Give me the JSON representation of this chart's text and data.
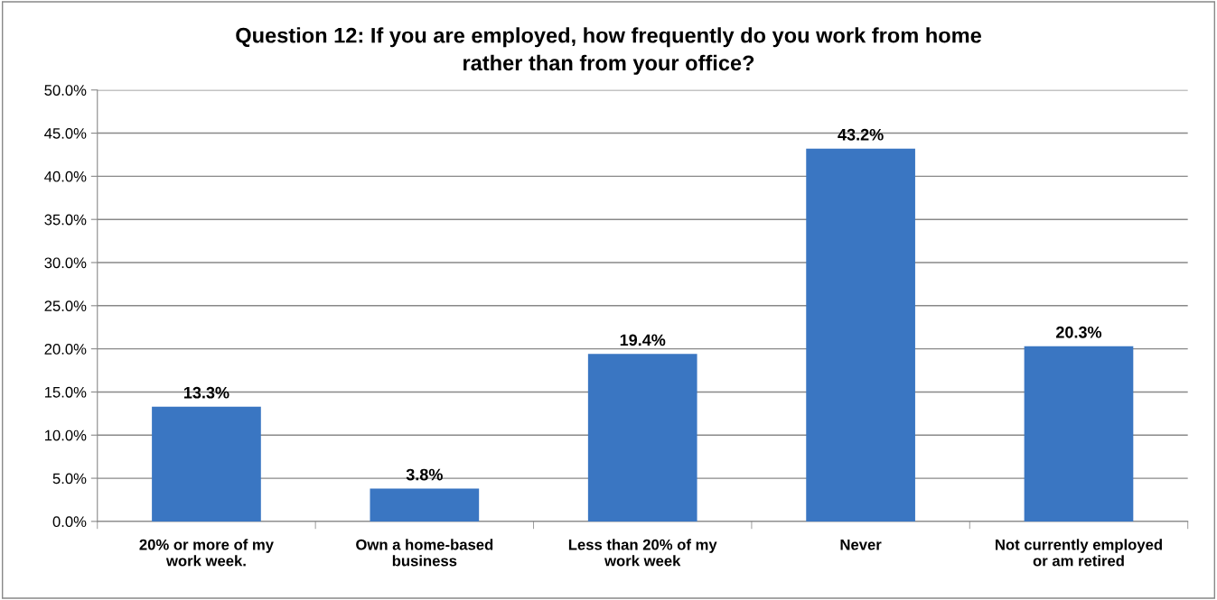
{
  "chart_data": {
    "type": "bar",
    "title": "Question 12: If you are employed, how frequently do you work from home\nrather than from your office?",
    "categories": [
      "20% or more of my\nwork week.",
      "Own a home-based\nbusiness",
      "Less than 20% of my\nwork week",
      "Never",
      "Not currently employed\nor am retired"
    ],
    "values": [
      13.3,
      3.8,
      19.4,
      43.2,
      20.3
    ],
    "value_labels": [
      "13.3%",
      "3.8%",
      "19.4%",
      "43.2%",
      "20.3%"
    ],
    "color": "#3a76c2",
    "ylim": [
      0,
      50
    ],
    "yticks": [
      {
        "value": 0,
        "label": "0.0%"
      },
      {
        "value": 5,
        "label": "5.0%"
      },
      {
        "value": 10,
        "label": "10.0%"
      },
      {
        "value": 15,
        "label": "15.0%"
      },
      {
        "value": 20,
        "label": "20.0%"
      },
      {
        "value": 25,
        "label": "25.0%"
      },
      {
        "value": 30,
        "label": "30.0%"
      },
      {
        "value": 35,
        "label": "35.0%"
      },
      {
        "value": 40,
        "label": "40.0%"
      },
      {
        "value": 45,
        "label": "45.0%"
      },
      {
        "value": 50,
        "label": "50.0%"
      }
    ],
    "grid": "y",
    "legend": false
  }
}
